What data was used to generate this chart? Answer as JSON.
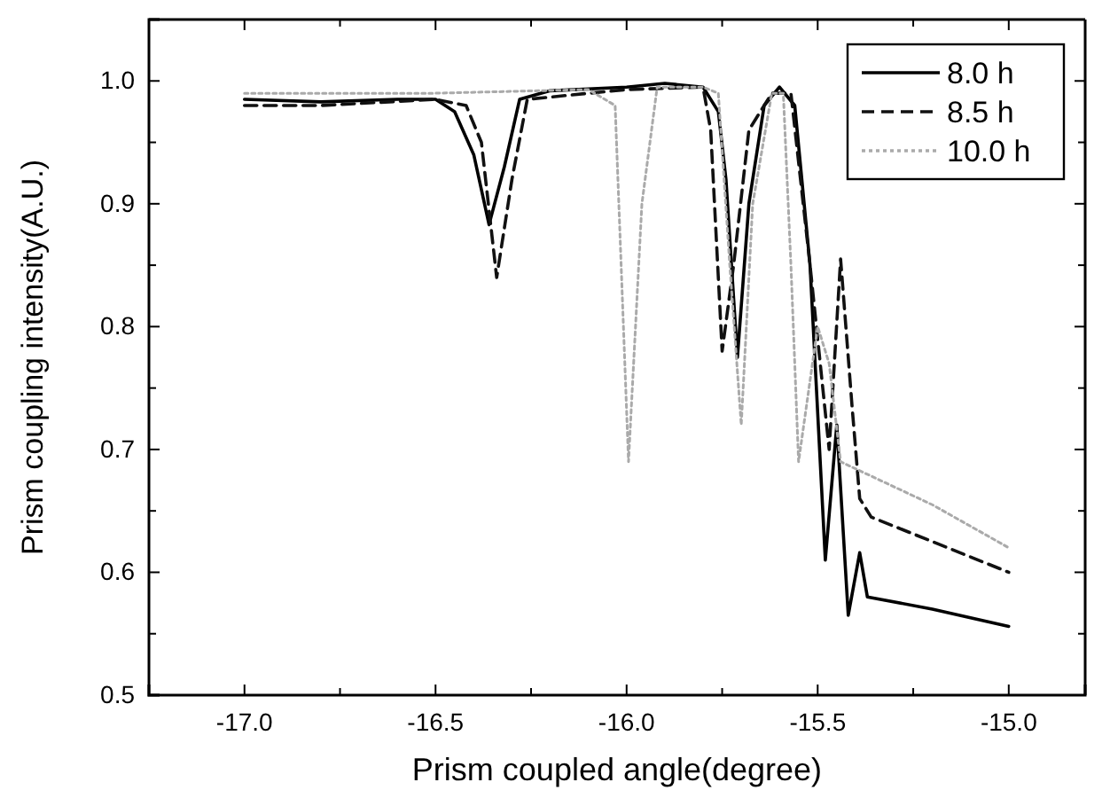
{
  "chart_data": {
    "type": "line",
    "xlabel": "Prism coupled angle(degree)",
    "ylabel": "Prism coupling intensity(A.U.)",
    "xlim": [
      -17.25,
      -14.8
    ],
    "ylim": [
      0.5,
      1.05
    ],
    "xticks": [
      {
        "value": -17,
        "label": "-17.0"
      },
      {
        "value": -16.75,
        "label": null
      },
      {
        "value": -16.5,
        "label": "-16.5"
      },
      {
        "value": -16.25,
        "label": null
      },
      {
        "value": -16,
        "label": "-16.0"
      },
      {
        "value": -15.75,
        "label": null
      },
      {
        "value": -15.5,
        "label": "-15.5"
      },
      {
        "value": -15.25,
        "label": null
      },
      {
        "value": -15,
        "label": "-15.0"
      }
    ],
    "yticks": [
      0.5,
      {
        "value": 0.55,
        "label": null
      },
      0.6,
      {
        "value": 0.65,
        "label": null
      },
      0.7,
      {
        "value": 0.75,
        "label": null
      },
      0.8,
      {
        "value": 0.85,
        "label": null
      },
      0.9,
      {
        "value": 0.95,
        "label": null
      },
      {
        "value": 1,
        "label": "1.0"
      }
    ],
    "legend": "top right",
    "grid": false,
    "marker": "none",
    "series": [
      {
        "name": "8.0 h",
        "color": "#000000",
        "line_style": "solid",
        "x": [
          -17,
          -16.8,
          -16.6,
          -16.5,
          -16.45,
          -16.4,
          -16.36,
          -16.32,
          -16.28,
          -16.2,
          -16.0,
          -15.9,
          -15.8,
          -15.76,
          -15.74,
          -15.71,
          -15.68,
          -15.64,
          -15.6,
          -15.56,
          -15.52,
          -15.48,
          -15.45,
          -15.42,
          -15.39,
          -15.37,
          -15.2,
          -15.0
        ],
        "values": [
          0.985,
          0.983,
          0.985,
          0.985,
          0.975,
          0.94,
          0.883,
          0.93,
          0.985,
          0.992,
          0.995,
          0.998,
          0.995,
          0.975,
          0.92,
          0.775,
          0.9,
          0.98,
          0.995,
          0.98,
          0.85,
          0.61,
          0.72,
          0.565,
          0.616,
          0.58,
          0.57,
          0.556
        ]
      },
      {
        "name": "8.5 h",
        "color": "#111111",
        "line_style": "dashed",
        "x": [
          -17,
          -16.8,
          -16.5,
          -16.42,
          -16.38,
          -16.34,
          -16.3,
          -16.26,
          -16.0,
          -15.8,
          -15.78,
          -15.75,
          -15.72,
          -15.68,
          -15.62,
          -15.57,
          -15.52,
          -15.47,
          -15.44,
          -15.41,
          -15.39,
          -15.36,
          -15.2,
          -15.0
        ],
        "values": [
          0.98,
          0.98,
          0.985,
          0.98,
          0.95,
          0.84,
          0.92,
          0.985,
          0.993,
          0.995,
          0.96,
          0.78,
          0.85,
          0.96,
          0.99,
          0.99,
          0.85,
          0.7,
          0.855,
          0.735,
          0.66,
          0.645,
          0.625,
          0.6
        ]
      },
      {
        "name": "10.0 h",
        "color": "#aaaaaa",
        "line_style": "dotted",
        "x": [
          -17,
          -16.5,
          -16.1,
          -16.03,
          -15.995,
          -15.96,
          -15.92,
          -15.8,
          -15.76,
          -15.73,
          -15.7,
          -15.67,
          -15.62,
          -15.59,
          -15.57,
          -15.55,
          -15.5,
          -15.47,
          -15.44,
          -15.2,
          -15.0
        ],
        "values": [
          0.99,
          0.99,
          0.993,
          0.98,
          0.69,
          0.9,
          0.995,
          0.995,
          0.99,
          0.85,
          0.72,
          0.9,
          0.99,
          0.99,
          0.85,
          0.69,
          0.8,
          0.77,
          0.69,
          0.655,
          0.62
        ]
      }
    ]
  }
}
